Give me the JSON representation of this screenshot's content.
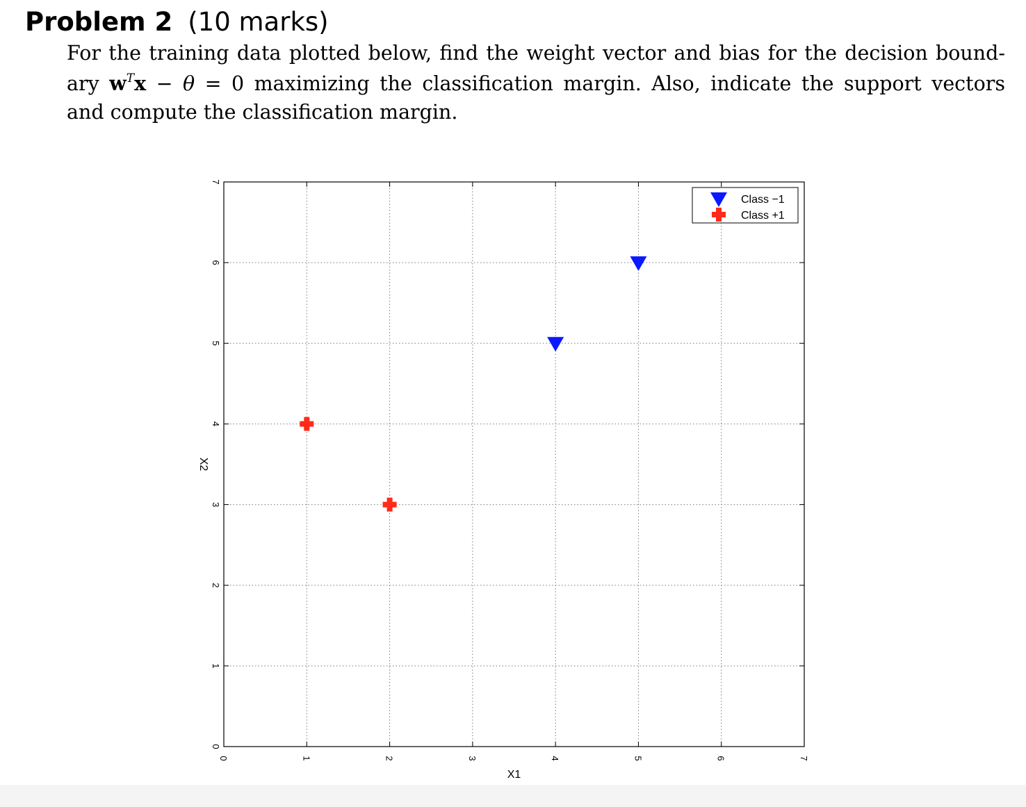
{
  "heading": {
    "problem": "Problem 2",
    "marks": "(10 marks)"
  },
  "statement": {
    "line1": "For the training data plotted below, find the weight vector and bias for the decision bound-",
    "line2_pre": "ary",
    "line2_w": "w",
    "line2_sup": "T",
    "line2_x": "x",
    "line2_mid": " − ",
    "line2_theta": "θ",
    "line2_post": " = 0 maximizing the classification margin.  Also, indicate the support vectors",
    "line3": "and compute the classification margin."
  },
  "chart_data": {
    "type": "scatter",
    "xlabel": "X1",
    "ylabel": "X2",
    "xlim": [
      0,
      7
    ],
    "ylim": [
      0,
      7
    ],
    "xticks": [
      0,
      1,
      2,
      3,
      4,
      5,
      6,
      7
    ],
    "yticks": [
      0,
      1,
      2,
      3,
      4,
      5,
      6,
      7
    ],
    "grid": true,
    "grid_style": "dotted",
    "legend_position": "top-right",
    "series": [
      {
        "name": "Class −1",
        "marker": "triangle-down",
        "color": "#0a19ff",
        "points": [
          [
            4,
            5
          ],
          [
            5,
            6
          ]
        ]
      },
      {
        "name": "Class +1",
        "marker": "plus",
        "color": "#ff2a1a",
        "points": [
          [
            1,
            4
          ],
          [
            2,
            3
          ]
        ]
      }
    ]
  }
}
